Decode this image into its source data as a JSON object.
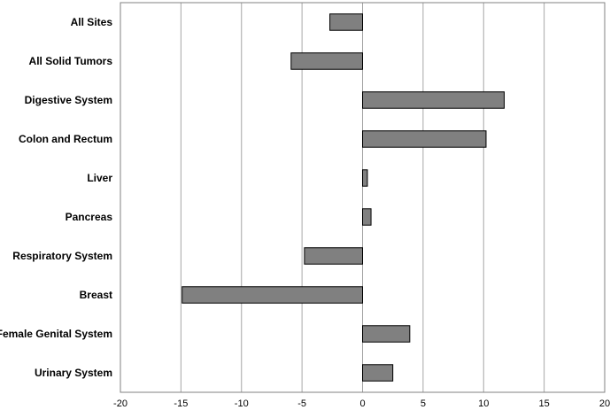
{
  "chart_data": {
    "type": "bar",
    "orientation": "horizontal",
    "title": "",
    "xlabel": "",
    "ylabel": "",
    "categories": [
      "All Sites",
      "All Solid Tumors",
      "Digestive System",
      "Colon and Rectum",
      "Liver",
      "Pancreas",
      "Respiratory System",
      "Breast",
      "Female Genital System",
      "Urinary System"
    ],
    "values": [
      -2.7,
      -5.9,
      11.7,
      10.2,
      0.4,
      0.7,
      -4.8,
      -14.9,
      3.9,
      2.5
    ],
    "xlim": [
      -20,
      20
    ],
    "xticks": [
      "-20",
      "-15",
      "-10",
      "-5",
      "0",
      "5",
      "10",
      "15",
      "20"
    ],
    "grid": "vertical",
    "bar_color": "#808080",
    "legend": "none"
  }
}
